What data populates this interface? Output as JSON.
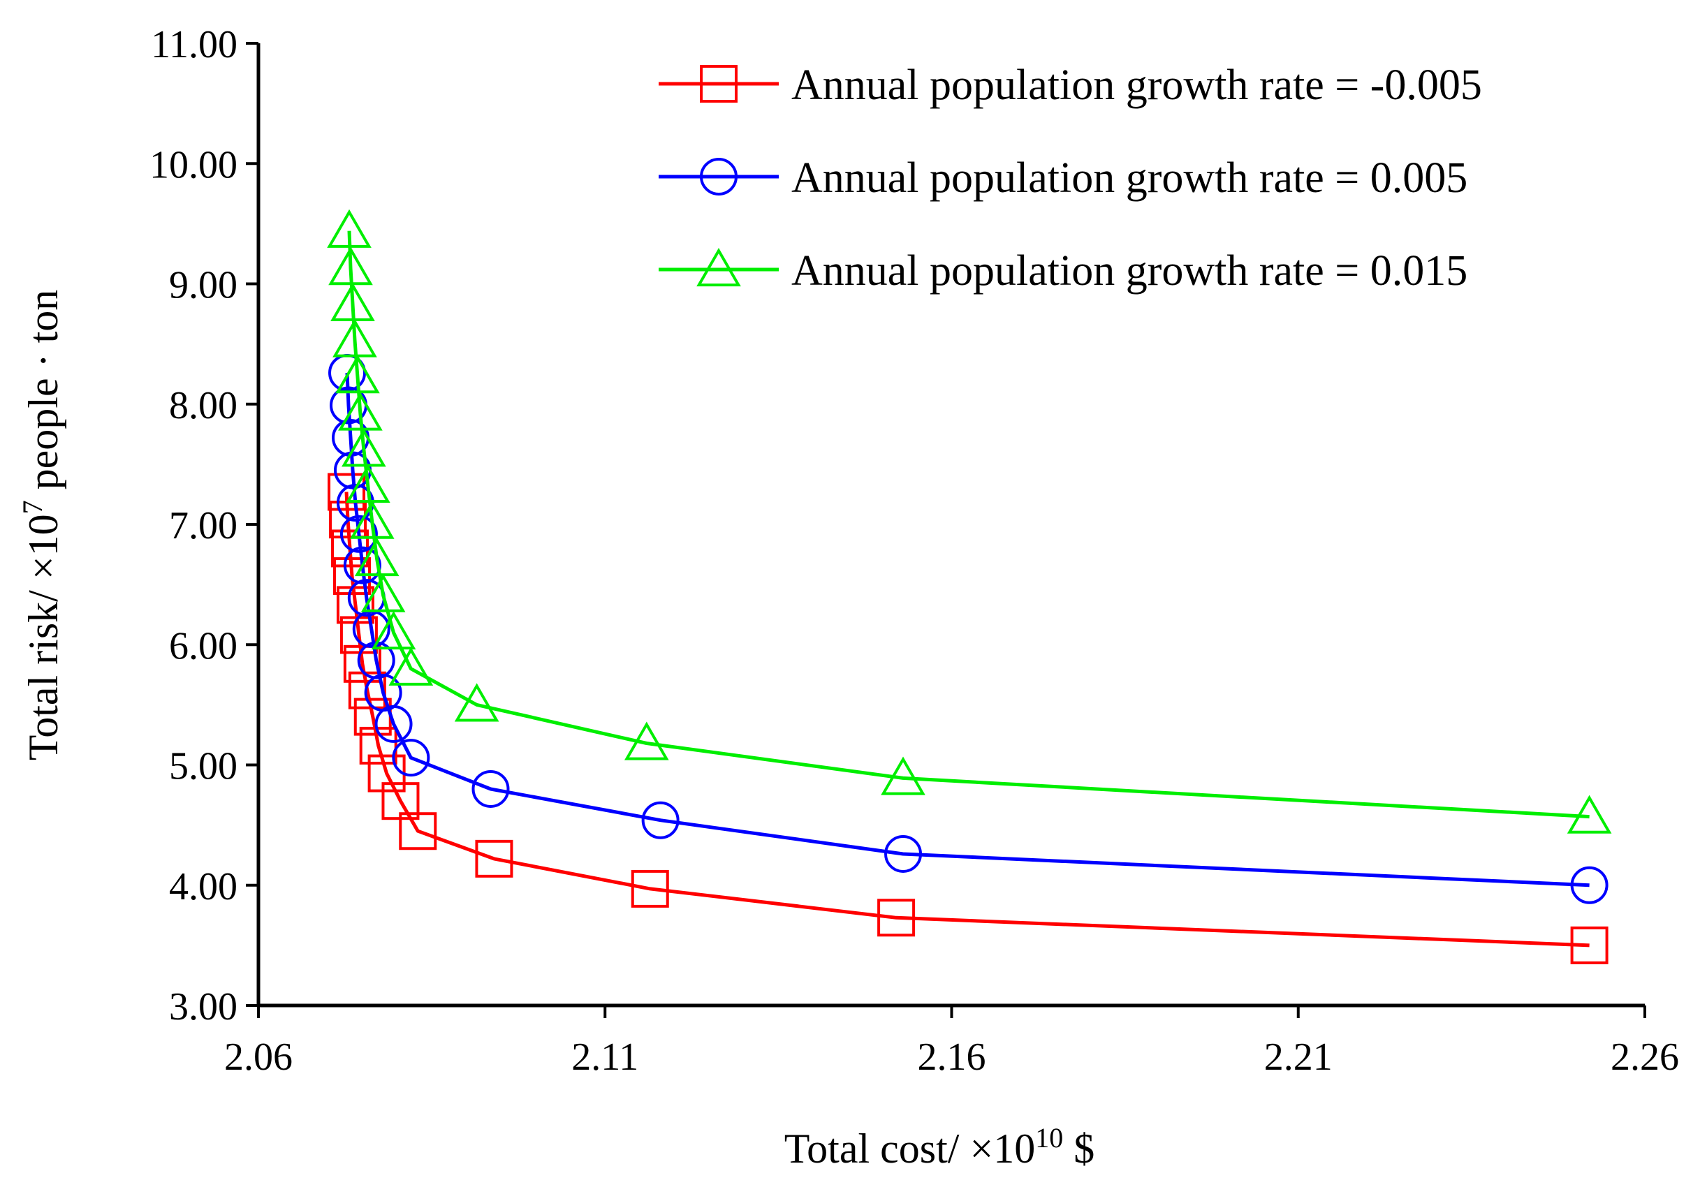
{
  "chart_data": {
    "type": "line",
    "xlabel": "Total cost/ ×10",
    "xlabel_sup": "10",
    "xlabel_unit": " $",
    "ylabel": "Total risk/ ×10",
    "ylabel_sup": "7",
    "ylabel_unit": " people · ton",
    "xlim": [
      2.06,
      2.26
    ],
    "ylim": [
      3.0,
      11.0
    ],
    "xticks": [
      "2.06",
      "2.11",
      "2.16",
      "2.21",
      "2.26"
    ],
    "yticks": [
      "3.00",
      "4.00",
      "5.00",
      "6.00",
      "7.00",
      "8.00",
      "9.00",
      "10.00",
      "11.00"
    ],
    "legend_position": "top-right",
    "series": [
      {
        "name": "Annual population growth rate = -0.005",
        "color": "#ff0000",
        "marker": "square",
        "x": [
          2.252,
          2.152,
          2.1165,
          2.094,
          2.083,
          2.0805,
          2.0785,
          2.0773,
          2.0765,
          2.0757,
          2.075,
          2.0745,
          2.074,
          2.0735,
          2.0732,
          2.0729,
          2.0727
        ],
        "y": [
          3.5,
          3.73,
          3.97,
          4.22,
          4.45,
          4.7,
          4.93,
          5.16,
          5.4,
          5.62,
          5.84,
          6.08,
          6.33,
          6.57,
          6.8,
          7.04,
          7.27
        ]
      },
      {
        "name": "Annual population growth rate = 0.005",
        "color": "#0000ff",
        "marker": "circle",
        "x": [
          2.252,
          2.153,
          2.118,
          2.0935,
          2.082,
          2.0795,
          2.078,
          2.077,
          2.0763,
          2.0756,
          2.075,
          2.0745,
          2.074,
          2.0736,
          2.0733,
          2.073,
          2.0728
        ],
        "y": [
          4.0,
          4.26,
          4.54,
          4.8,
          5.06,
          5.34,
          5.6,
          5.87,
          6.13,
          6.39,
          6.66,
          6.92,
          7.18,
          7.45,
          7.72,
          7.99,
          8.26
        ]
      },
      {
        "name": "Annual population growth rate = 0.015",
        "color": "#00ee00",
        "marker": "triangle",
        "x": [
          2.252,
          2.153,
          2.116,
          2.0915,
          2.082,
          2.0795,
          2.078,
          2.0771,
          2.0764,
          2.0758,
          2.0752,
          2.0747,
          2.0743,
          2.0739,
          2.0736,
          2.0733,
          2.0731
        ],
        "y": [
          4.57,
          4.89,
          5.18,
          5.5,
          5.8,
          6.1,
          6.41,
          6.71,
          7.02,
          7.32,
          7.62,
          7.92,
          8.23,
          8.53,
          8.83,
          9.13,
          9.44
        ]
      }
    ]
  }
}
